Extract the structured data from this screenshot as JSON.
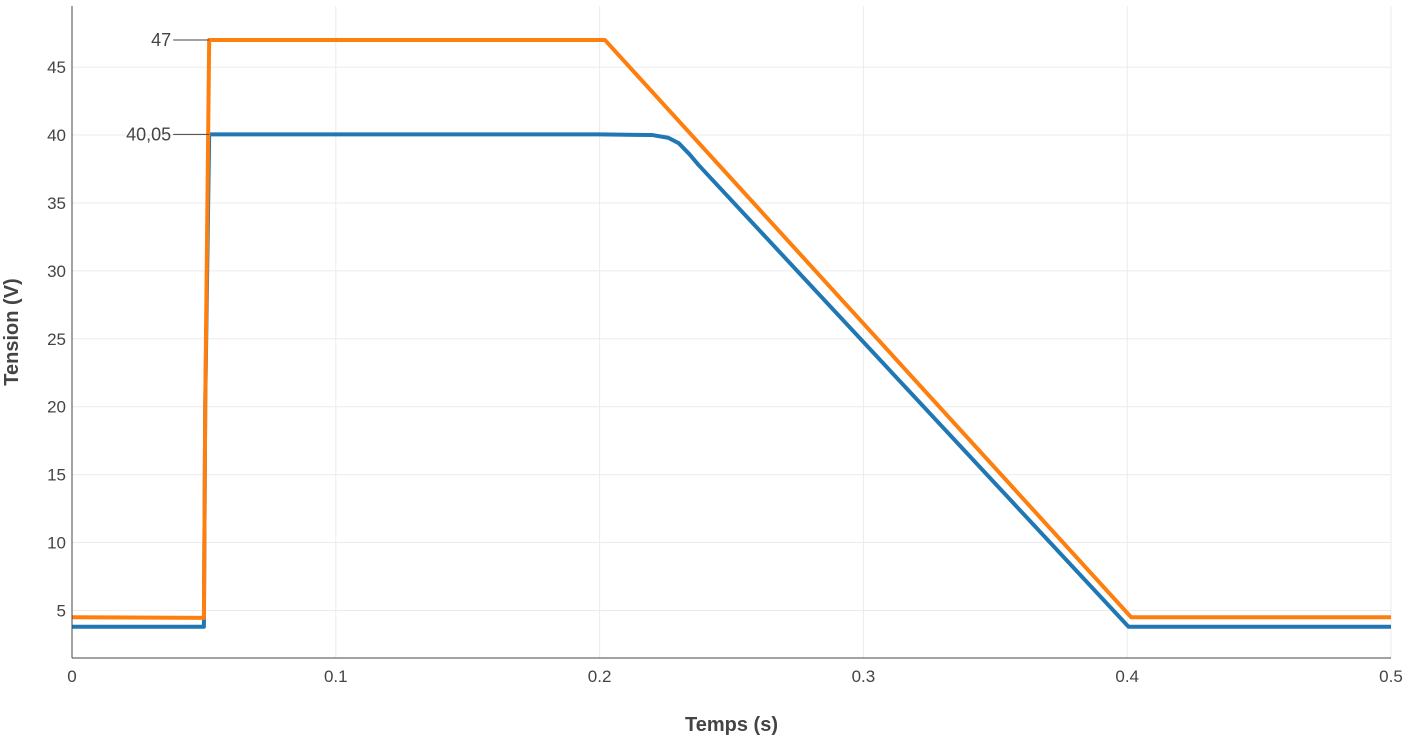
{
  "chart_data": {
    "type": "line",
    "xlabel": "Temps (s)",
    "ylabel": "Tension (V)",
    "xlim": [
      0,
      0.5
    ],
    "ylim": [
      1.5,
      49.5
    ],
    "grid": true,
    "x_ticks": [
      0,
      0.1,
      0.2,
      0.3,
      0.4,
      0.5
    ],
    "x_tick_labels": [
      "0",
      "0.1",
      "0.2",
      "0.3",
      "0.4",
      "0.5"
    ],
    "y_ticks": [
      5,
      10,
      15,
      20,
      25,
      30,
      35,
      40,
      45
    ],
    "y_tick_labels": [
      "5",
      "10",
      "15",
      "20",
      "25",
      "30",
      "35",
      "40",
      "45"
    ],
    "series": [
      {
        "color": "#ff7f0e",
        "x": [
          0,
          0.05,
          0.0505,
          0.052,
          0.2,
          0.202,
          0.4015,
          0.5
        ],
        "y": [
          4.5,
          4.45,
          20,
          47,
          47,
          47,
          4.5,
          4.5
        ]
      },
      {
        "color": "#1f77b4",
        "x": [
          0,
          0.05,
          0.0505,
          0.052,
          0.2,
          0.22,
          0.226,
          0.23,
          0.234,
          0.2375,
          0.4005,
          0.5
        ],
        "y": [
          3.8,
          3.8,
          20,
          40.05,
          40.05,
          40.0,
          39.8,
          39.4,
          38.6,
          37.8,
          3.8,
          3.8
        ]
      }
    ],
    "annotations": [
      {
        "text": "47",
        "x": 0.052,
        "y": 47
      },
      {
        "text": "40,05",
        "x": 0.052,
        "y": 40.05
      }
    ]
  }
}
